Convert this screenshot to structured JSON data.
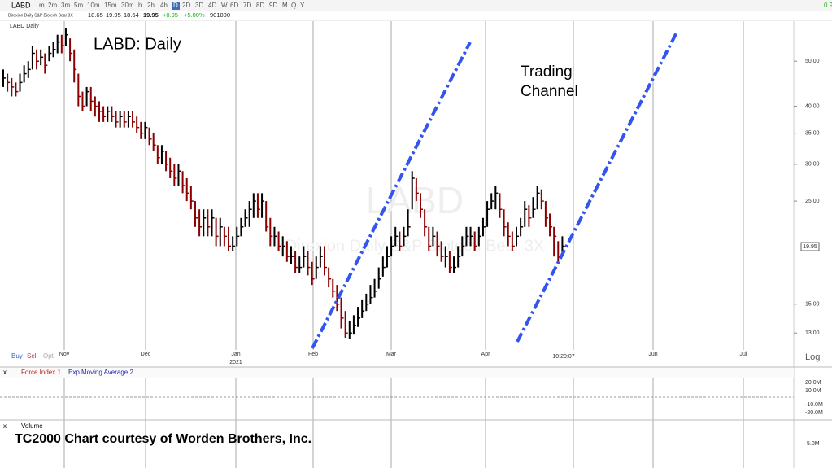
{
  "toolbar": {
    "symbol": "LABD",
    "timeframes": [
      "m",
      "2m",
      "3m",
      "5m",
      "10m",
      "15m",
      "30m",
      "h",
      "2h",
      "4h",
      "D",
      "2D",
      "3D",
      "4D",
      "W",
      "6D",
      "7D",
      "8D",
      "9D",
      "M",
      "Q",
      "Y"
    ],
    "right": "0.9"
  },
  "quote": {
    "name": "Direxion Daily S&P Biotech Bear 3X",
    "open": "18.65",
    "high": "19.95",
    "low": "18.64",
    "last": "19.95",
    "change": "+0.95",
    "percent": "+5.00%",
    "volume": "901000"
  },
  "price_chart": {
    "type": "ohlc",
    "label": "LABD Daily",
    "title": "LABD:  Daily",
    "annotation": "Trading Channel",
    "watermark": "LABD",
    "watermark_name": "Direxion Daily S&P Biotech Bear 3X",
    "close": [
      46,
      45,
      44,
      43,
      45,
      47,
      48,
      52,
      50,
      51,
      49,
      52,
      53,
      55,
      54,
      57,
      52,
      48,
      42,
      40,
      43,
      41,
      40,
      39,
      38,
      39,
      38,
      37,
      38,
      37,
      38,
      37,
      36,
      35,
      36,
      34,
      33,
      31,
      32,
      30,
      29,
      28,
      29,
      27,
      26,
      25,
      23,
      22,
      23,
      22,
      23,
      21,
      22,
      21,
      20,
      20,
      21,
      22,
      23,
      24,
      25,
      24,
      25,
      22,
      21,
      21,
      20,
      20,
      19,
      19,
      18,
      18,
      19,
      18,
      17,
      18,
      19,
      18,
      17,
      16,
      15,
      14,
      13,
      13,
      13.5,
      14,
      14.5,
      15,
      15.5,
      16,
      17,
      18,
      19,
      20,
      21,
      20,
      21,
      22,
      28,
      26,
      24,
      22,
      20,
      21,
      20,
      19,
      19,
      18,
      18,
      19,
      20,
      21,
      21,
      20,
      21,
      22,
      24,
      25,
      26,
      24,
      22,
      21,
      20,
      21,
      22,
      24,
      23,
      24,
      26,
      25,
      23,
      22,
      21,
      19,
      20
    ],
    "high": [
      48,
      47,
      46,
      45,
      47,
      49,
      50,
      54,
      53,
      53,
      52,
      54,
      55,
      57,
      57,
      59,
      56,
      53,
      47,
      43,
      44,
      44,
      42,
      41,
      40,
      40,
      40,
      39,
      39,
      39,
      39,
      39,
      38,
      37,
      37,
      36,
      35,
      33,
      33,
      32,
      31,
      30,
      30,
      29,
      28,
      27,
      25,
      24,
      24,
      24,
      24,
      23,
      23,
      22,
      22,
      21,
      22,
      23,
      24,
      25,
      26,
      26,
      26,
      25,
      23,
      22,
      21.5,
      21,
      20.5,
      20,
      19.5,
      19,
      20,
      19.5,
      18.5,
      19,
      20,
      20,
      18,
      17,
      16.5,
      15.5,
      14.5,
      13.8,
      14.2,
      14.8,
      15.3,
      15.8,
      16.5,
      17,
      18,
      19,
      20,
      21,
      22,
      21.5,
      22,
      24,
      29,
      28,
      26,
      24,
      22,
      22,
      21.5,
      20.5,
      20,
      19.5,
      19,
      20,
      21,
      22,
      22,
      21.5,
      22,
      23,
      25,
      26,
      27,
      26,
      24,
      22.5,
      21.5,
      22,
      23,
      25,
      24.5,
      25.5,
      27,
      26.5,
      25,
      23.5,
      22,
      20.5,
      21
    ],
    "low": [
      44,
      43,
      42,
      42,
      43,
      45,
      46,
      48,
      48,
      49,
      47,
      50,
      51,
      52,
      52,
      54,
      50,
      45,
      40,
      39,
      40,
      39,
      38,
      37,
      37,
      37,
      37,
      36,
      36,
      36,
      36,
      36,
      35,
      34,
      34,
      33,
      32,
      30,
      30,
      29,
      28,
      27,
      27,
      26,
      25,
      24,
      22,
      21,
      21,
      21,
      21,
      20,
      20,
      20,
      19.5,
      19.5,
      20,
      21,
      22,
      22,
      23,
      23,
      23,
      21.5,
      20,
      20,
      19.5,
      19,
      18.5,
      18.3,
      17.5,
      17.5,
      18,
      17.3,
      16.5,
      17,
      18,
      17.3,
      16.3,
      15.5,
      14.5,
      13.3,
      12.7,
      12.6,
      12.9,
      13.4,
      14,
      14.5,
      15,
      15.5,
      16.2,
      17.2,
      18,
      19,
      20,
      19.5,
      20,
      21,
      24,
      25,
      23,
      21,
      19.5,
      20,
      19,
      18.5,
      18,
      17.5,
      17.5,
      18,
      19,
      20,
      20,
      19.5,
      20,
      21,
      22,
      24,
      24,
      23,
      21,
      20,
      19.5,
      20,
      21,
      22,
      22,
      23,
      24,
      24,
      22,
      21,
      19,
      18.5,
      19
    ],
    "ylim": [
      12.2,
      60
    ],
    "log_scale": true,
    "yticks": [
      {
        "value": 13,
        "label": "13.00"
      },
      {
        "value": 15,
        "label": "15.00"
      },
      {
        "value": 25,
        "label": "25.00"
      },
      {
        "value": 30,
        "label": "30.00"
      },
      {
        "value": 35,
        "label": "35.00"
      },
      {
        "value": 40,
        "label": "40.00"
      },
      {
        "value": 50,
        "label": "50.00"
      }
    ],
    "months": [
      "Nov",
      "Dec",
      "Jan",
      "Feb",
      "Mar",
      "Apr",
      "Jun",
      "Jul"
    ],
    "year": "2021",
    "time": "10:20:07",
    "scale": "Log",
    "orders": [
      "Buy",
      "Sell",
      "Opt"
    ]
  },
  "force_panel": {
    "indicators": [
      "Force Index 1",
      "Exp Moving Average 2"
    ],
    "ticks": [
      "20.0M",
      "10.0M",
      "-10.0M",
      "-20.0M"
    ]
  },
  "volume_panel": {
    "label": "Volume",
    "credit": "TC2000 Chart courtesy of Worden Brothers, Inc.",
    "tick": "5.0M"
  }
}
